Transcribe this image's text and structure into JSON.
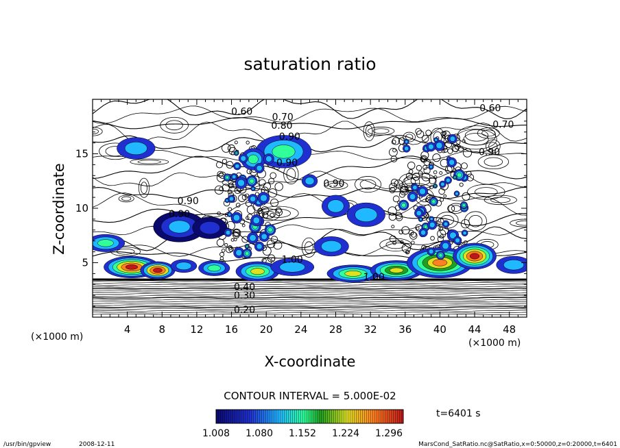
{
  "chart_data": {
    "type": "heatmap",
    "title": "saturation ratio",
    "xlabel": "X-coordinate",
    "ylabel": "Z-coordinate",
    "x_unit": "(×1000 m)",
    "z_unit": "(×1000 m)",
    "xlim": [
      0,
      50
    ],
    "ylim": [
      0,
      20
    ],
    "x_ticks": [
      4,
      8,
      12,
      16,
      20,
      24,
      28,
      32,
      36,
      40,
      44,
      48
    ],
    "y_ticks": [
      5,
      10,
      15
    ],
    "grid": false,
    "contour_interval_text": "CONTOUR INTERVAL = 5.000E-02",
    "contour_labels": [
      {
        "text": "0.60",
        "x": 17.2,
        "z": 18.9
      },
      {
        "text": "0.70",
        "x": 21.9,
        "z": 18.4
      },
      {
        "text": "0.80",
        "x": 21.8,
        "z": 17.6
      },
      {
        "text": "0.90",
        "x": 22.7,
        "z": 16.6
      },
      {
        "text": "0.60",
        "x": 45.8,
        "z": 19.2
      },
      {
        "text": "0.70",
        "x": 47.3,
        "z": 17.7
      },
      {
        "text": "0.90",
        "x": 45.7,
        "z": 15.2
      },
      {
        "text": "0.90",
        "x": 22.4,
        "z": 14.2
      },
      {
        "text": "0.90",
        "x": 27.8,
        "z": 12.3
      },
      {
        "text": "0.90",
        "x": 11.0,
        "z": 10.7
      },
      {
        "text": "0.90",
        "x": 10.0,
        "z": 9.5
      },
      {
        "text": "1.00",
        "x": 23.0,
        "z": 5.3
      },
      {
        "text": "1.00",
        "x": 32.4,
        "z": 3.7
      },
      {
        "text": "0.40",
        "x": 17.5,
        "z": 2.8
      },
      {
        "text": "0.30",
        "x": 17.5,
        "z": 2.0
      },
      {
        "text": "0.20",
        "x": 17.5,
        "z": 0.7
      }
    ],
    "colorbar": {
      "min": 1.008,
      "max": 1.32,
      "colors": [
        "#0a0a6e",
        "#2030d0",
        "#20b8ff",
        "#30ff9a",
        "#20a020",
        "#dfe020",
        "#ff8020",
        "#c01818"
      ],
      "tick_labels": [
        "1.008",
        "1.080",
        "1.152",
        "1.224",
        "1.296"
      ]
    },
    "time_label": "t=6401 s"
  },
  "footer": {
    "program": "/usr/bin/gpview",
    "date": "2008-12-11",
    "source": "MarsCond_SatRatio.nc@SatRatio,x=0:50000,z=0:20000,t=6401"
  }
}
